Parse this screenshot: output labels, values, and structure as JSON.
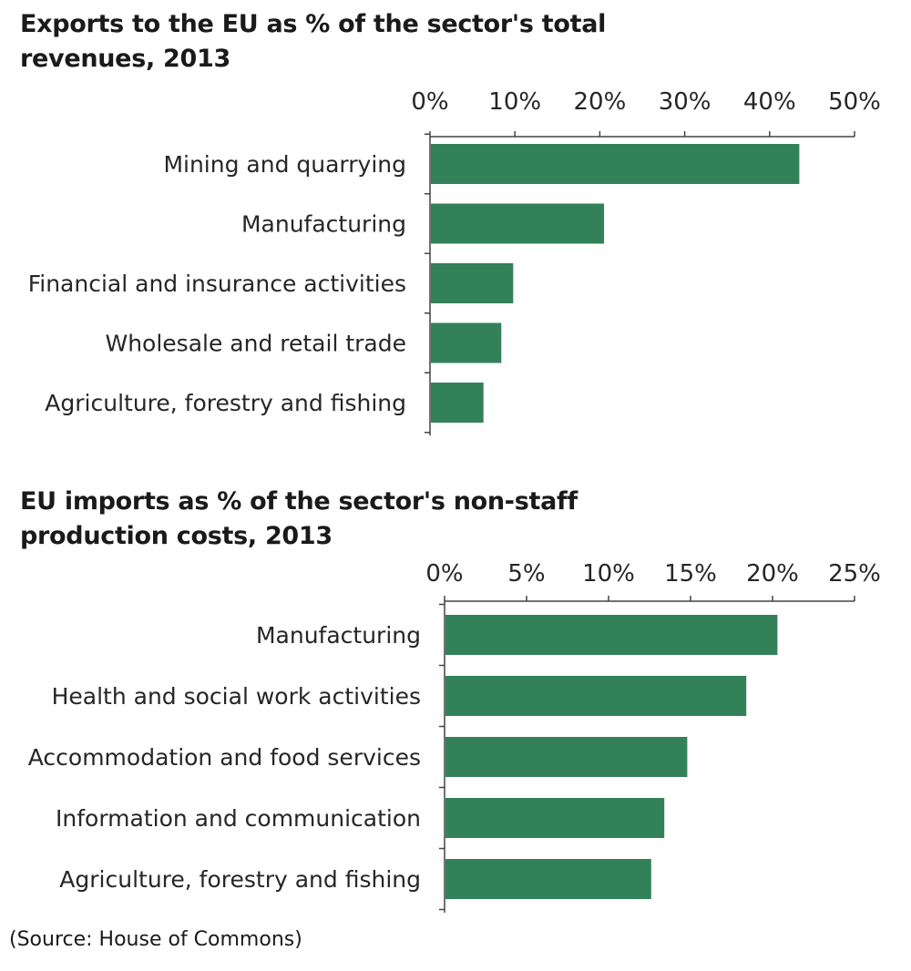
{
  "chart_data": [
    {
      "type": "bar",
      "orientation": "horizontal",
      "title": "Exports to the EU as % of the sector's total revenues, 2013",
      "categories": [
        "Mining and quarrying",
        "Manufacturing",
        "Financial and insurance activities",
        "Wholesale and retail trade",
        "Agriculture, forestry and fishing"
      ],
      "values": [
        43.5,
        20.5,
        9.8,
        8.4,
        6.3
      ],
      "unit": "%",
      "xlim": [
        0,
        50
      ],
      "ticks": [
        "0%",
        "10%",
        "20%",
        "30%",
        "40%",
        "50%"
      ],
      "axis_position": "top",
      "grid": false,
      "bar_color": "#338158"
    },
    {
      "type": "bar",
      "orientation": "horizontal",
      "title": "EU imports as % of the sector's non-staff production costs, 2013",
      "categories": [
        "Manufacturing",
        "Health and social work activities",
        "Accommodation and food services",
        "Information and communication",
        "Agriculture, forestry and fishing"
      ],
      "values": [
        20.3,
        18.4,
        14.8,
        13.4,
        12.6
      ],
      "unit": "%",
      "xlim": [
        0,
        25
      ],
      "ticks": [
        "0%",
        "5%",
        "10%",
        "15%",
        "20%",
        "25%"
      ],
      "axis_position": "top",
      "grid": false,
      "bar_color": "#338158"
    }
  ],
  "source": "(Source: House of Commons)"
}
